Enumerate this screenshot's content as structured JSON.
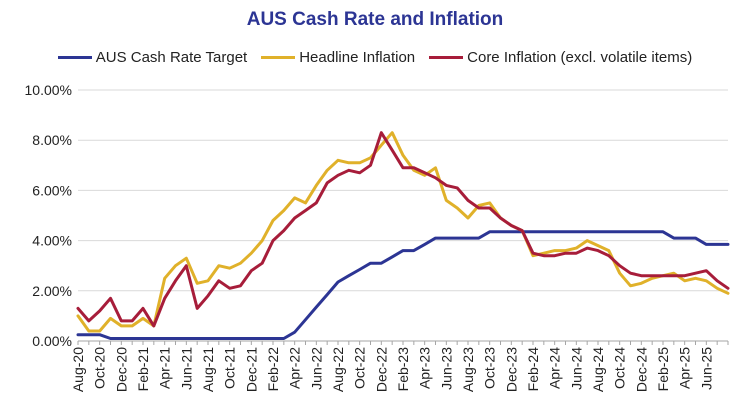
{
  "chart_data": {
    "type": "line",
    "title": "AUS Cash Rate and Inflation",
    "xlabel": "",
    "ylabel": "",
    "ylim": [
      0,
      10
    ],
    "y_ticks": [
      "0.00%",
      "2.00%",
      "4.00%",
      "6.00%",
      "8.00%",
      "10.00%"
    ],
    "x_tick_labels": [
      "Aug-20",
      "Oct-20",
      "Dec-20",
      "Feb-21",
      "Apr-21",
      "Jun-21",
      "Aug-21",
      "Oct-21",
      "Dec-21",
      "Feb-22",
      "Apr-22",
      "Jun-22",
      "Aug-22",
      "Oct-22",
      "Dec-22",
      "Feb-23",
      "Apr-23",
      "Jun-23",
      "Aug-23",
      "Oct-23",
      "Dec-23",
      "Feb-24",
      "Apr-24",
      "Jun-24",
      "Aug-24",
      "Oct-24",
      "Dec-24",
      "Feb-25",
      "Apr-25",
      "Jun-25"
    ],
    "grid": true,
    "legend_position": "top",
    "series": [
      {
        "name": "AUS Cash Rate Target",
        "color": "#2c3594",
        "values": [
          0.25,
          0.25,
          0.25,
          0.1,
          0.1,
          0.1,
          0.1,
          0.1,
          0.1,
          0.1,
          0.1,
          0.1,
          0.1,
          0.1,
          0.1,
          0.1,
          0.1,
          0.1,
          0.1,
          0.1,
          0.35,
          0.85,
          1.35,
          1.85,
          2.35,
          2.6,
          2.85,
          3.1,
          3.1,
          3.35,
          3.6,
          3.6,
          3.85,
          4.1,
          4.1,
          4.1,
          4.1,
          4.1,
          4.35,
          4.35,
          4.35,
          4.35,
          4.35,
          4.35,
          4.35,
          4.35,
          4.35,
          4.35,
          4.35,
          4.35,
          4.35,
          4.35,
          4.35,
          4.35,
          4.35,
          4.1,
          4.1,
          4.1,
          3.85,
          3.85,
          3.85
        ]
      },
      {
        "name": "Headline Inflation",
        "color": "#e0b12a",
        "values": [
          1.0,
          0.4,
          0.4,
          0.9,
          0.6,
          0.6,
          0.9,
          0.6,
          2.5,
          3.0,
          3.3,
          2.3,
          2.4,
          3.0,
          2.9,
          3.1,
          3.5,
          4.0,
          4.8,
          5.2,
          5.7,
          5.5,
          6.2,
          6.8,
          7.2,
          7.1,
          7.1,
          7.3,
          7.8,
          8.3,
          7.4,
          6.8,
          6.6,
          6.9,
          5.6,
          5.3,
          4.9,
          5.4,
          5.5,
          4.9,
          4.6,
          4.4,
          3.4,
          3.5,
          3.6,
          3.6,
          3.7,
          4.0,
          3.8,
          3.6,
          2.7,
          2.2,
          2.3,
          2.5,
          2.6,
          2.7,
          2.4,
          2.5,
          2.4,
          2.1,
          1.9
        ]
      },
      {
        "name": "Core Inflation (excl. volatile items)",
        "color": "#a71d3a",
        "values": [
          1.3,
          0.8,
          1.2,
          1.7,
          0.8,
          0.8,
          1.3,
          0.6,
          1.7,
          2.4,
          3.0,
          1.3,
          1.8,
          2.4,
          2.1,
          2.2,
          2.8,
          3.1,
          4.0,
          4.4,
          4.9,
          5.2,
          5.5,
          6.3,
          6.6,
          6.8,
          6.7,
          7.0,
          8.3,
          7.6,
          6.9,
          6.9,
          6.7,
          6.5,
          6.2,
          6.1,
          5.6,
          5.3,
          5.3,
          4.9,
          4.6,
          4.4,
          3.5,
          3.4,
          3.4,
          3.5,
          3.5,
          3.7,
          3.6,
          3.4,
          3.0,
          2.7,
          2.6,
          2.6,
          2.6,
          2.6,
          2.6,
          2.7,
          2.8,
          2.4,
          2.1
        ]
      }
    ]
  }
}
